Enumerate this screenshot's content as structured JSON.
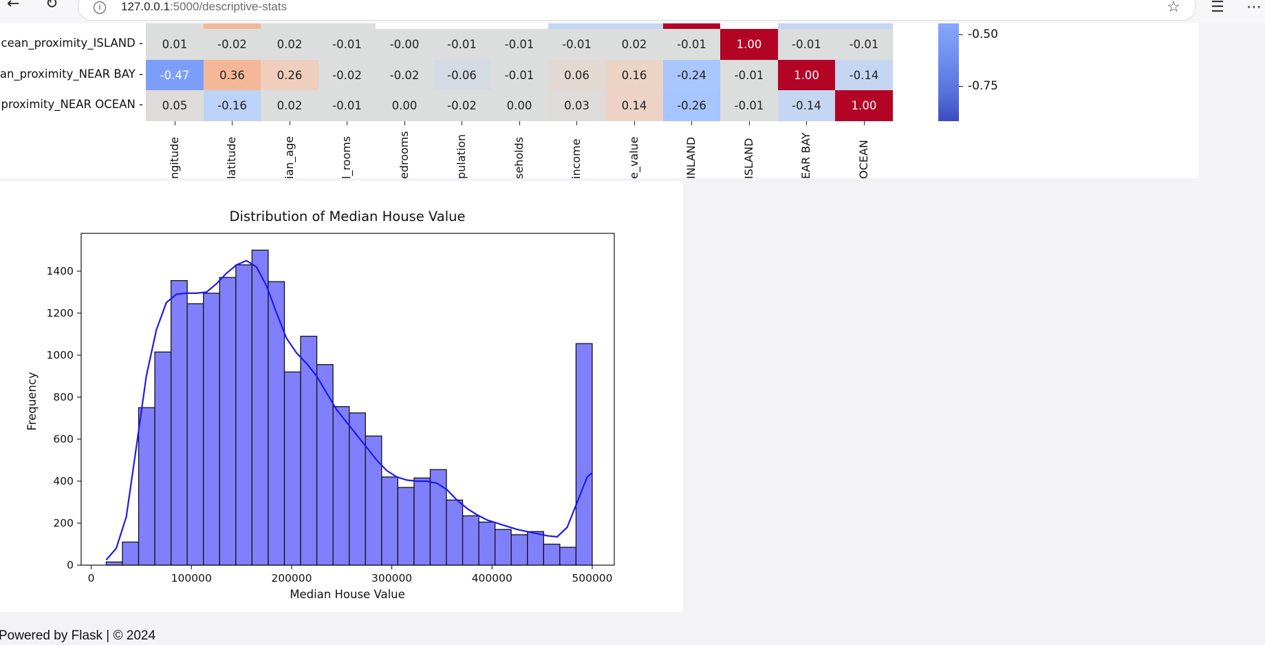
{
  "browser": {
    "url_host": "127.0.0.1",
    "url_path": ":5000/descriptive-stats"
  },
  "heatmap": {
    "rows": [
      {
        "label": "cean_proximity_ISLAND -",
        "values": [
          "0.01",
          "-0.02",
          "0.02",
          "-0.01",
          "-0.00",
          "-0.01",
          "-0.01",
          "-0.01",
          "0.02",
          "-0.01",
          "1.00",
          "-0.01",
          "-0.01"
        ],
        "colors": [
          "#dcdddd",
          "#dcdddd",
          "#dcdddd",
          "#dcdddd",
          "#dcdddd",
          "#dcdddd",
          "#dcdddd",
          "#dcdddd",
          "#dcdddd",
          "#dcdddd",
          "#b40426",
          "#dcdddd",
          "#dcdddd"
        ]
      },
      {
        "label": "an_proximity_NEAR BAY -",
        "values": [
          "-0.47",
          "0.36",
          "0.26",
          "-0.02",
          "-0.02",
          "-0.06",
          "-0.01",
          "0.06",
          "0.16",
          "-0.24",
          "-0.01",
          "1.00",
          "-0.14"
        ],
        "colors": [
          "#7b9ff9",
          "#f5b79a",
          "#efcebd",
          "#dcdddd",
          "#dcdddd",
          "#d5dbe5",
          "#dcdddd",
          "#e3d9d3",
          "#ebd3c6",
          "#aac7fd",
          "#dcdddd",
          "#b40426",
          "#c5d6f2"
        ]
      },
      {
        "label": "proximity_NEAR OCEAN -",
        "values": [
          "0.05",
          "-0.16",
          "0.02",
          "-0.01",
          "0.00",
          "-0.02",
          "0.00",
          "0.03",
          "0.14",
          "-0.26",
          "-0.01",
          "-0.14",
          "1.00"
        ],
        "colors": [
          "#dedcdb",
          "#bcd2f7",
          "#dcdddd",
          "#dcdddd",
          "#dcdddd",
          "#dcdddd",
          "#dcdddd",
          "#dedcdb",
          "#ecd3c5",
          "#a7c5fe",
          "#dcdddd",
          "#c5d6f2",
          "#b40426"
        ]
      }
    ],
    "top_strip_colors": [
      "#dcdddd",
      "#f5b79a",
      "#dcdddd",
      "#dcdddd",
      "#ffffff",
      "#ffffff",
      "#ffffff",
      "#c5d6f2",
      "#c5d6f2",
      "#b40426",
      "#ffffff",
      "#c5d6f2",
      "#c5d6f2"
    ],
    "x_labels": [
      "ngitude",
      "latitude",
      "ian_age",
      "l_rooms",
      "edrooms",
      "pulation",
      "seholds",
      "income",
      "e_value",
      "INLAND",
      "ISLAND",
      "EAR BAY",
      "OCEAN"
    ],
    "light_text_color": "#ffffff",
    "colorbar_ticks": [
      "-0.50",
      "-0.75"
    ]
  },
  "chart_data": {
    "type": "bar",
    "title": "Distribution of Median House Value",
    "xlabel": "Median House Value",
    "ylabel": "Frequency",
    "xlim": [
      -10000,
      522000
    ],
    "ylim": [
      0,
      1580
    ],
    "x_ticks": [
      0,
      100000,
      200000,
      300000,
      400000,
      500000
    ],
    "x_tick_labels": [
      "0",
      "100000",
      "200000",
      "300000",
      "400000",
      "500000"
    ],
    "y_ticks": [
      0,
      200,
      400,
      600,
      800,
      1000,
      1200,
      1400
    ],
    "bin_start": 14999,
    "bin_width": 16166.7,
    "values": [
      15,
      110,
      750,
      1015,
      1355,
      1245,
      1295,
      1370,
      1430,
      1500,
      1350,
      920,
      1090,
      955,
      755,
      725,
      615,
      420,
      370,
      415,
      455,
      310,
      235,
      205,
      170,
      145,
      160,
      100,
      85,
      1055
    ],
    "kde_x": [
      14999,
      25000,
      35000,
      45000,
      55000,
      65000,
      75000,
      85000,
      95000,
      105000,
      115000,
      125000,
      135000,
      145000,
      155000,
      165000,
      175000,
      185000,
      195000,
      205000,
      215000,
      225000,
      235000,
      245000,
      255000,
      265000,
      275000,
      285000,
      295000,
      305000,
      315000,
      325000,
      335000,
      345000,
      355000,
      365000,
      375000,
      385000,
      395000,
      405000,
      415000,
      425000,
      435000,
      445000,
      455000,
      465000,
      475000,
      485000,
      495000,
      500001
    ],
    "kde_y": [
      25,
      80,
      230,
      560,
      900,
      1120,
      1250,
      1290,
      1295,
      1295,
      1300,
      1340,
      1390,
      1430,
      1450,
      1420,
      1330,
      1200,
      1080,
      1010,
      960,
      900,
      820,
      740,
      680,
      620,
      560,
      500,
      450,
      420,
      405,
      400,
      400,
      390,
      360,
      310,
      270,
      240,
      215,
      200,
      185,
      170,
      160,
      150,
      140,
      135,
      180,
      300,
      420,
      440
    ],
    "bar_color": "#8080ff",
    "line_color": "#1a1aee"
  },
  "footer": {
    "text": "Powered by Flask | © 2024"
  }
}
